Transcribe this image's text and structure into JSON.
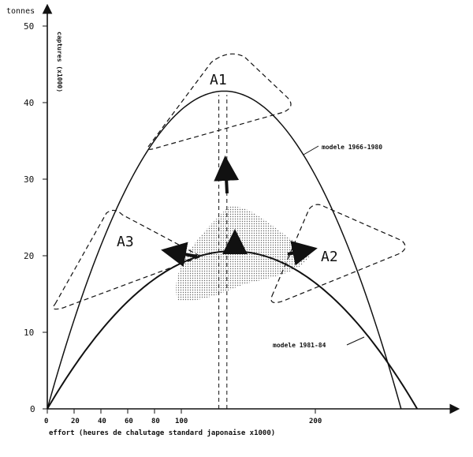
{
  "chart_data": {
    "type": "line",
    "title": "",
    "xlabel": "effort (heures de chalutage standard japonaise  x1000)",
    "ylabel": "captures (x1000)",
    "yunit": "tonnes",
    "xlim": [
      0,
      300
    ],
    "ylim": [
      0,
      50
    ],
    "xticks": [
      0,
      20,
      40,
      60,
      80,
      100,
      200
    ],
    "yticks": [
      0,
      10,
      20,
      30,
      40,
      50
    ],
    "grid": false,
    "series": [
      {
        "name": "modele 1966-1980",
        "type": "parabola",
        "zero_end": 264,
        "peak_x": 132,
        "peak_y": 41.5
      },
      {
        "name": "modele 1981-84",
        "type": "parabola",
        "zero_end": 276,
        "peak_x": 138,
        "peak_y": 20.6
      }
    ],
    "annotations": [
      {
        "label": "A1",
        "x": 128,
        "y": 43.5
      },
      {
        "label": "A2",
        "x": 205,
        "y": 20
      },
      {
        "label": "A3",
        "x": 57,
        "y": 22
      }
    ],
    "vertical_lines_x": [
      128,
      134
    ],
    "color": "#111111"
  }
}
